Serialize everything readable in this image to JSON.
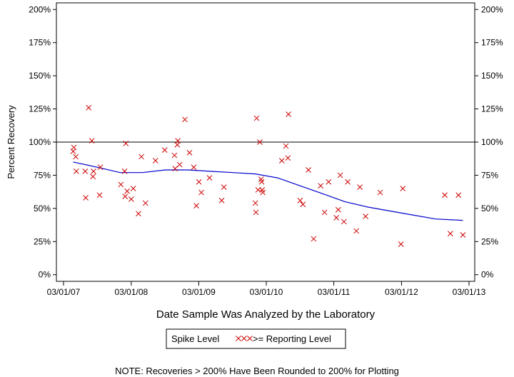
{
  "chart_data": {
    "type": "scatter",
    "xlabel": "Date Sample Was Analyzed by the Laboratory",
    "ylabel": "Percent Recovery",
    "xlim": [
      "2007-03-01",
      "2013-03-01"
    ],
    "ylim": [
      -5,
      205
    ],
    "x_ticks": [
      "03/01/07",
      "03/01/08",
      "03/01/09",
      "03/01/10",
      "03/01/11",
      "03/01/12",
      "03/01/13"
    ],
    "y_ticks": [
      "0%",
      "25%",
      "50%",
      "75%",
      "100%",
      "125%",
      "150%",
      "175%",
      "200%"
    ],
    "y_tick_values": [
      0,
      25,
      50,
      75,
      100,
      125,
      150,
      175,
      200
    ],
    "reference_line": 100,
    "legend": {
      "placement": "bottom-center",
      "items": [
        {
          "label": "Spike Level"
        },
        {
          "label": ">= Reporting Level",
          "marker": "xxx",
          "color": "#cc0000"
        }
      ]
    },
    "note": "NOTE: Recoveries > 200% Have Been Rounded to 200% for Plotting",
    "series": [
      {
        "marker": "x",
        "color": "#cc0000",
        "points": [
          [
            "2007-04-22",
            93
          ],
          [
            "2007-04-26",
            96
          ],
          [
            "2007-05-06",
            89
          ],
          [
            "2007-05-09",
            78
          ],
          [
            "2007-06-26",
            78
          ],
          [
            "2007-06-29",
            58
          ],
          [
            "2007-07-15",
            126
          ],
          [
            "2007-08-01",
            101
          ],
          [
            "2007-08-07",
            74
          ],
          [
            "2007-08-10",
            78
          ],
          [
            "2007-09-12",
            60
          ],
          [
            "2007-09-16",
            81
          ],
          [
            "2008-01-05",
            68
          ],
          [
            "2008-01-25",
            78
          ],
          [
            "2008-01-28",
            59
          ],
          [
            "2008-02-01",
            99
          ],
          [
            "2008-02-08",
            63
          ],
          [
            "2008-03-01",
            57
          ],
          [
            "2008-03-12",
            65
          ],
          [
            "2008-04-09",
            46
          ],
          [
            "2008-04-25",
            89
          ],
          [
            "2008-05-17",
            54
          ],
          [
            "2008-07-10",
            86
          ],
          [
            "2008-08-29",
            94
          ],
          [
            "2008-10-21",
            90
          ],
          [
            "2008-10-24",
            80
          ],
          [
            "2008-11-05",
            98
          ],
          [
            "2008-11-08",
            101
          ],
          [
            "2008-11-18",
            83
          ],
          [
            "2008-12-16",
            117
          ],
          [
            "2009-01-10",
            92
          ],
          [
            "2009-02-02",
            81
          ],
          [
            "2009-02-16",
            52
          ],
          [
            "2009-03-02",
            70
          ],
          [
            "2009-03-15",
            62
          ],
          [
            "2009-04-28",
            73
          ],
          [
            "2009-07-03",
            56
          ],
          [
            "2009-07-15",
            66
          ],
          [
            "2010-01-01",
            54
          ],
          [
            "2010-01-04",
            47
          ],
          [
            "2010-01-08",
            118
          ],
          [
            "2010-01-16",
            64
          ],
          [
            "2010-01-25",
            100
          ],
          [
            "2010-02-01",
            72
          ],
          [
            "2010-02-04",
            70
          ],
          [
            "2010-02-07",
            64
          ],
          [
            "2010-02-10",
            62
          ],
          [
            "2010-05-24",
            86
          ],
          [
            "2010-06-15",
            97
          ],
          [
            "2010-06-26",
            88
          ],
          [
            "2010-06-29",
            121
          ],
          [
            "2010-08-31",
            56
          ],
          [
            "2010-09-15",
            53
          ],
          [
            "2010-10-15",
            79
          ],
          [
            "2010-11-12",
            27
          ],
          [
            "2010-12-20",
            67
          ],
          [
            "2011-01-10",
            47
          ],
          [
            "2011-02-01",
            70
          ],
          [
            "2011-03-15",
            43
          ],
          [
            "2011-03-25",
            49
          ],
          [
            "2011-04-05",
            75
          ],
          [
            "2011-04-25",
            40
          ],
          [
            "2011-05-15",
            70
          ],
          [
            "2011-07-01",
            33
          ],
          [
            "2011-07-20",
            66
          ],
          [
            "2011-08-20",
            44
          ],
          [
            "2011-11-07",
            62
          ],
          [
            "2012-02-27",
            23
          ],
          [
            "2012-03-08",
            65
          ],
          [
            "2012-10-21",
            60
          ],
          [
            "2012-11-20",
            31
          ],
          [
            "2013-01-03",
            60
          ],
          [
            "2013-01-27",
            30
          ]
        ]
      },
      {
        "style": "smooth-line",
        "color": "#0000cc",
        "points": [
          [
            "2007-04-22",
            85
          ],
          [
            "2007-09-01",
            81
          ],
          [
            "2008-01-01",
            77
          ],
          [
            "2008-05-01",
            77
          ],
          [
            "2008-09-01",
            79
          ],
          [
            "2009-01-01",
            79
          ],
          [
            "2009-05-01",
            78
          ],
          [
            "2009-09-01",
            77
          ],
          [
            "2010-01-01",
            76
          ],
          [
            "2010-05-01",
            73
          ],
          [
            "2010-09-01",
            67
          ],
          [
            "2011-01-01",
            61
          ],
          [
            "2011-05-01",
            55
          ],
          [
            "2011-09-01",
            51
          ],
          [
            "2012-01-01",
            48
          ],
          [
            "2012-05-01",
            45
          ],
          [
            "2012-09-01",
            42
          ],
          [
            "2013-01-27",
            41
          ]
        ]
      }
    ]
  }
}
